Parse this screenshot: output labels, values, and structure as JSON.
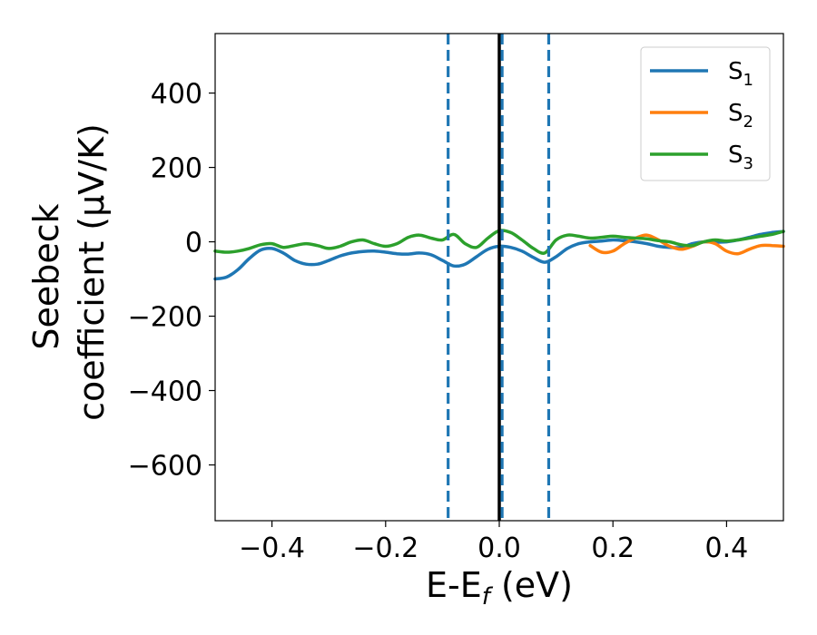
{
  "chart_data": {
    "type": "line",
    "xlabel": "E-E",
    "xlabel_sub": "f",
    "xlabel_unit": " (eV)",
    "ylabel_line1": "Seebeck",
    "ylabel_line2": "coefficient  (μV/K)",
    "xlim": [
      -0.5,
      0.5
    ],
    "ylim": [
      -750,
      560
    ],
    "x_ticks": [
      -0.4,
      -0.2,
      0.0,
      0.2,
      0.4
    ],
    "x_tick_labels": [
      "−0.4",
      "−0.2",
      "0.0",
      "0.2",
      "0.4"
    ],
    "y_ticks": [
      400,
      200,
      0,
      -200,
      -400,
      -600
    ],
    "y_tick_labels": [
      "400",
      "200",
      "0",
      "−200",
      "−400",
      "−600"
    ],
    "grid": false,
    "legend_position": "top-right",
    "vertical_lines": [
      {
        "x": 0.0,
        "color": "#000000",
        "style": "solid"
      },
      {
        "x": -0.09,
        "color": "#1f77b4",
        "style": "dashed"
      },
      {
        "x": 0.005,
        "color": "#1f77b4",
        "style": "dashed"
      },
      {
        "x": 0.087,
        "color": "#1f77b4",
        "style": "dashed"
      }
    ],
    "series": [
      {
        "label": "S",
        "sub": "1",
        "color": "#1f77b4",
        "x": [
          -0.5,
          -0.48,
          -0.46,
          -0.44,
          -0.42,
          -0.4,
          -0.38,
          -0.36,
          -0.34,
          -0.32,
          -0.3,
          -0.28,
          -0.26,
          -0.24,
          -0.22,
          -0.2,
          -0.18,
          -0.16,
          -0.14,
          -0.12,
          -0.1,
          -0.08,
          -0.06,
          -0.04,
          -0.02,
          0.0,
          0.02,
          0.04,
          0.06,
          0.08,
          0.1,
          0.12,
          0.14,
          0.16,
          0.18,
          0.2,
          0.22,
          0.24,
          0.26,
          0.28,
          0.3,
          0.32,
          0.34,
          0.36,
          0.38,
          0.4,
          0.42,
          0.44,
          0.46,
          0.48,
          0.5
        ],
        "y": [
          -100,
          -95,
          -75,
          -45,
          -22,
          -18,
          -30,
          -50,
          -60,
          -60,
          -50,
          -38,
          -30,
          -26,
          -25,
          -28,
          -32,
          -33,
          -30,
          -35,
          -50,
          -65,
          -60,
          -40,
          -20,
          -12,
          -15,
          -25,
          -42,
          -55,
          -40,
          -18,
          -5,
          0,
          2,
          5,
          3,
          0,
          -5,
          -12,
          -15,
          -15,
          -5,
          0,
          -1,
          0,
          5,
          12,
          20,
          25,
          28
        ]
      },
      {
        "label": "S",
        "sub": "2",
        "color": "#ff7f0e",
        "x": [
          0.16,
          0.18,
          0.2,
          0.22,
          0.24,
          0.26,
          0.28,
          0.3,
          0.32,
          0.34,
          0.36,
          0.38,
          0.4,
          0.42,
          0.44,
          0.46,
          0.48,
          0.5
        ],
        "y": [
          -10,
          -28,
          -25,
          -5,
          10,
          18,
          5,
          -12,
          -20,
          -12,
          0,
          -5,
          -25,
          -32,
          -20,
          -10,
          -10,
          -12
        ]
      },
      {
        "label": "S",
        "sub": "3",
        "color": "#2ca02c",
        "x": [
          -0.5,
          -0.48,
          -0.46,
          -0.44,
          -0.42,
          -0.4,
          -0.38,
          -0.36,
          -0.34,
          -0.32,
          -0.3,
          -0.28,
          -0.26,
          -0.24,
          -0.22,
          -0.2,
          -0.18,
          -0.16,
          -0.14,
          -0.12,
          -0.1,
          -0.08,
          -0.06,
          -0.04,
          -0.02,
          0.0,
          0.02,
          0.04,
          0.06,
          0.08,
          0.1,
          0.12,
          0.14,
          0.16,
          0.18,
          0.2,
          0.22,
          0.24,
          0.26,
          0.28,
          0.3,
          0.32,
          0.34,
          0.36,
          0.38,
          0.4,
          0.42,
          0.44,
          0.46,
          0.48,
          0.5
        ],
        "y": [
          -25,
          -28,
          -25,
          -18,
          -8,
          -5,
          -15,
          -10,
          -5,
          -10,
          -18,
          -12,
          0,
          5,
          -5,
          -12,
          -5,
          12,
          18,
          10,
          5,
          20,
          -5,
          -15,
          10,
          30,
          25,
          5,
          -18,
          -30,
          5,
          18,
          15,
          10,
          12,
          15,
          12,
          10,
          8,
          3,
          0,
          -8,
          -10,
          0,
          5,
          2,
          5,
          10,
          15,
          20,
          28
        ]
      }
    ]
  }
}
